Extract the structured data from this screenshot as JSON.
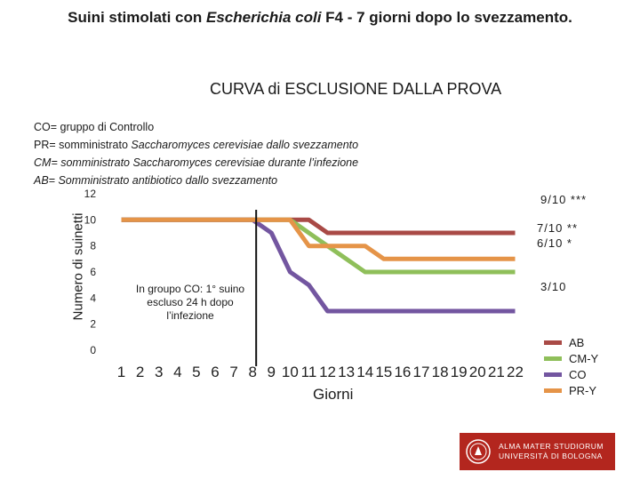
{
  "header": {
    "prefix": "Suini  stimolati con ",
    "italic": "Escherichia coli",
    "suffix": " F4 - 7 giorni dopo lo svezzamento."
  },
  "notes": {
    "line1": "CO= gruppo di Controllo",
    "line2_a": "PR= somministrato ",
    "line2_b": "Saccharomyces cerevisiae dallo svezzamento",
    "line3_a": "CM= somministrato ",
    "line3_b": "Saccharomyces cerevisiae durante l’infezione",
    "line4": "AB= Somministrato antibiotico dallo svezzamento"
  },
  "annotation": {
    "line1": "In groupo CO: 1° suino",
    "line2": "escluso 24 h dopo",
    "line3": "l’infezione"
  },
  "right_labels": [
    "9/10 ***",
    "7/10 **",
    "6/10 *",
    "3/10"
  ],
  "logo": {
    "line1": "ALMA MATER STUDIORUM",
    "line2": "UNIVERSITÀ DI BOLOGNA"
  },
  "chart_data": {
    "type": "line",
    "title": "CURVA di ESCLUSIONE DALLA PROVA",
    "xlabel": "Giorni",
    "ylabel": "Numero  di suinetti",
    "x": [
      1,
      2,
      3,
      4,
      5,
      6,
      7,
      8,
      9,
      10,
      11,
      12,
      13,
      14,
      15,
      16,
      17,
      18,
      19,
      20,
      21,
      22
    ],
    "ylim": [
      0,
      12
    ],
    "yticks": [
      0,
      2,
      4,
      6,
      8,
      10,
      12
    ],
    "grid": false,
    "legend_position": "right",
    "event_marker_x": 8,
    "series": [
      {
        "name": "AB",
        "color": "#a94a46",
        "values": [
          10,
          10,
          10,
          10,
          10,
          10,
          10,
          10,
          10,
          10,
          10,
          9,
          9,
          9,
          9,
          9,
          9,
          9,
          9,
          9,
          9,
          9
        ]
      },
      {
        "name": "CM-Y",
        "color": "#8fbf5a",
        "values": [
          10,
          10,
          10,
          10,
          10,
          10,
          10,
          10,
          10,
          10,
          9,
          8,
          7,
          6,
          6,
          6,
          6,
          6,
          6,
          6,
          6,
          6
        ]
      },
      {
        "name": "CO",
        "color": "#7356a0",
        "values": [
          10,
          10,
          10,
          10,
          10,
          10,
          10,
          10,
          9,
          6,
          5,
          3,
          3,
          3,
          3,
          3,
          3,
          3,
          3,
          3,
          3,
          3
        ]
      },
      {
        "name": "PR-Y",
        "color": "#e59448",
        "values": [
          10,
          10,
          10,
          10,
          10,
          10,
          10,
          10,
          10,
          10,
          8,
          8,
          8,
          8,
          7,
          7,
          7,
          7,
          7,
          7,
          7,
          7
        ]
      }
    ]
  }
}
